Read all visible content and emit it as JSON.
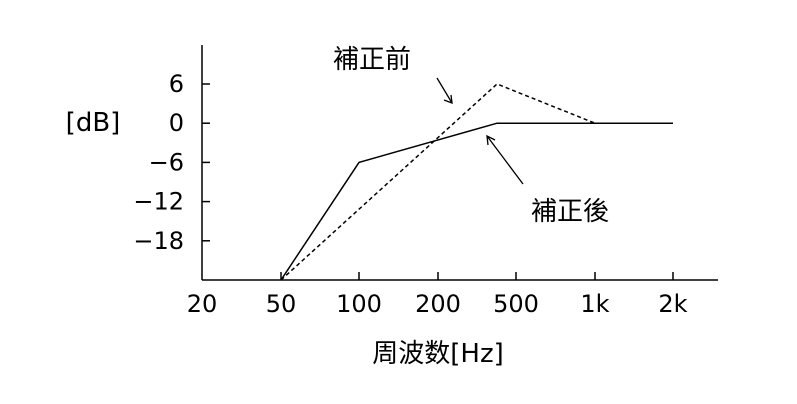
{
  "chart_data": {
    "type": "line",
    "xlabel": "周波数[Hz]",
    "ylabel": "[dB]",
    "x_ticks": [
      "20",
      "50",
      "100",
      "200",
      "500",
      "1k",
      "2k"
    ],
    "y_ticks": [
      6,
      0,
      -6,
      -12,
      -18
    ],
    "ylim": [
      -24,
      6
    ],
    "grid": false,
    "series": [
      {
        "name": "補正前",
        "style": "dashed",
        "points": [
          {
            "x": "50",
            "y": -24
          },
          {
            "x": "400",
            "y": 6
          },
          {
            "x": "1k",
            "y": 0
          }
        ]
      },
      {
        "name": "補正後",
        "style": "solid",
        "points": [
          {
            "x": "50",
            "y": -24
          },
          {
            "x": "100",
            "y": -6
          },
          {
            "x": "400",
            "y": 0
          },
          {
            "x": "2k",
            "y": 0
          }
        ]
      }
    ],
    "annotations": [
      {
        "text": "補正前",
        "series": "補正前"
      },
      {
        "text": "補正後",
        "series": "補正後"
      }
    ]
  }
}
